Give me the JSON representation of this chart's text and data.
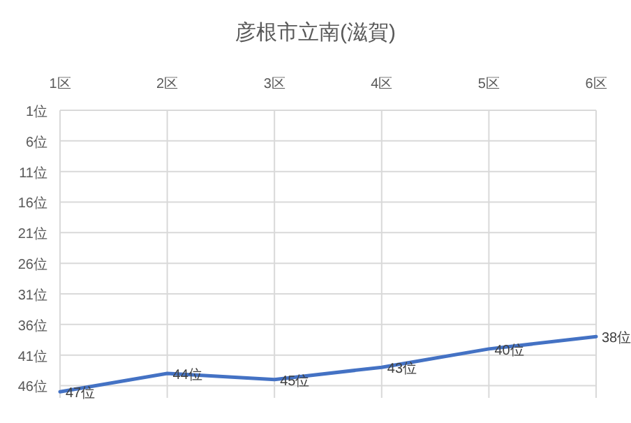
{
  "chart_data": {
    "type": "line",
    "title": "彦根市立南(滋賀)",
    "categories": [
      "1区",
      "2区",
      "3区",
      "4区",
      "5区",
      "6区"
    ],
    "series": [
      {
        "color": "#4472c4",
        "values": [
          47,
          44,
          45,
          43,
          40,
          38
        ],
        "value_labels": [
          "47位",
          "44位",
          "45位",
          "43位",
          "40位",
          "38位"
        ]
      }
    ],
    "ylim": [
      48,
      1
    ],
    "yticks": [
      {
        "value": 1,
        "label": "1位"
      },
      {
        "value": 6,
        "label": "6位"
      },
      {
        "value": 11,
        "label": "11位"
      },
      {
        "value": 16,
        "label": "16位"
      },
      {
        "value": 21,
        "label": "21位"
      },
      {
        "value": 26,
        "label": "26位"
      },
      {
        "value": 31,
        "label": "31位"
      },
      {
        "value": 36,
        "label": "36位"
      },
      {
        "value": 41,
        "label": "41位"
      },
      {
        "value": 46,
        "label": "46位"
      }
    ],
    "grid": true,
    "marker": "none",
    "line_style": "solid"
  }
}
